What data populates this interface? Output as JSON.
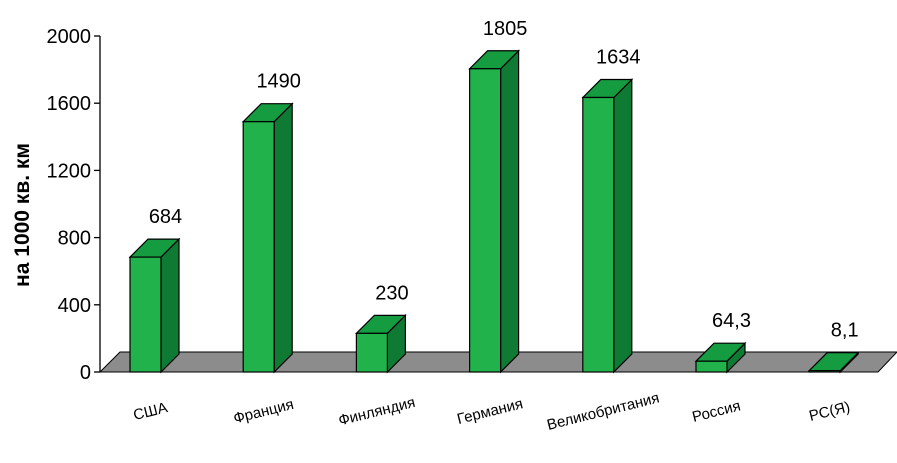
{
  "chart_data": {
    "type": "bar",
    "title": "",
    "xlabel": "",
    "ylabel": "на 1000 кв. км",
    "categories": [
      "США",
      "Франция",
      "Финляндия",
      "Германия",
      "Великобритания",
      "Россия",
      "РС(Я)"
    ],
    "values": [
      684,
      1490,
      230,
      1805,
      1634,
      64.3,
      8.1
    ],
    "value_labels": [
      "684",
      "1490",
      "230",
      "1805",
      "1634",
      "64,3",
      "8,1"
    ],
    "ylim": [
      0,
      2000
    ],
    "yticks": [
      0,
      400,
      800,
      1200,
      1600,
      2000
    ],
    "ytick_labels": [
      "0",
      "400",
      "800",
      "1200",
      "1600",
      "2000"
    ],
    "grid": false,
    "legend": "none",
    "style": "3d-column",
    "colors": {
      "bar_front": "#22b24c",
      "bar_side": "#0f7a34",
      "bar_top": "#159b40",
      "bar_outline": "#000000",
      "floor": "#8c8c8c"
    }
  }
}
